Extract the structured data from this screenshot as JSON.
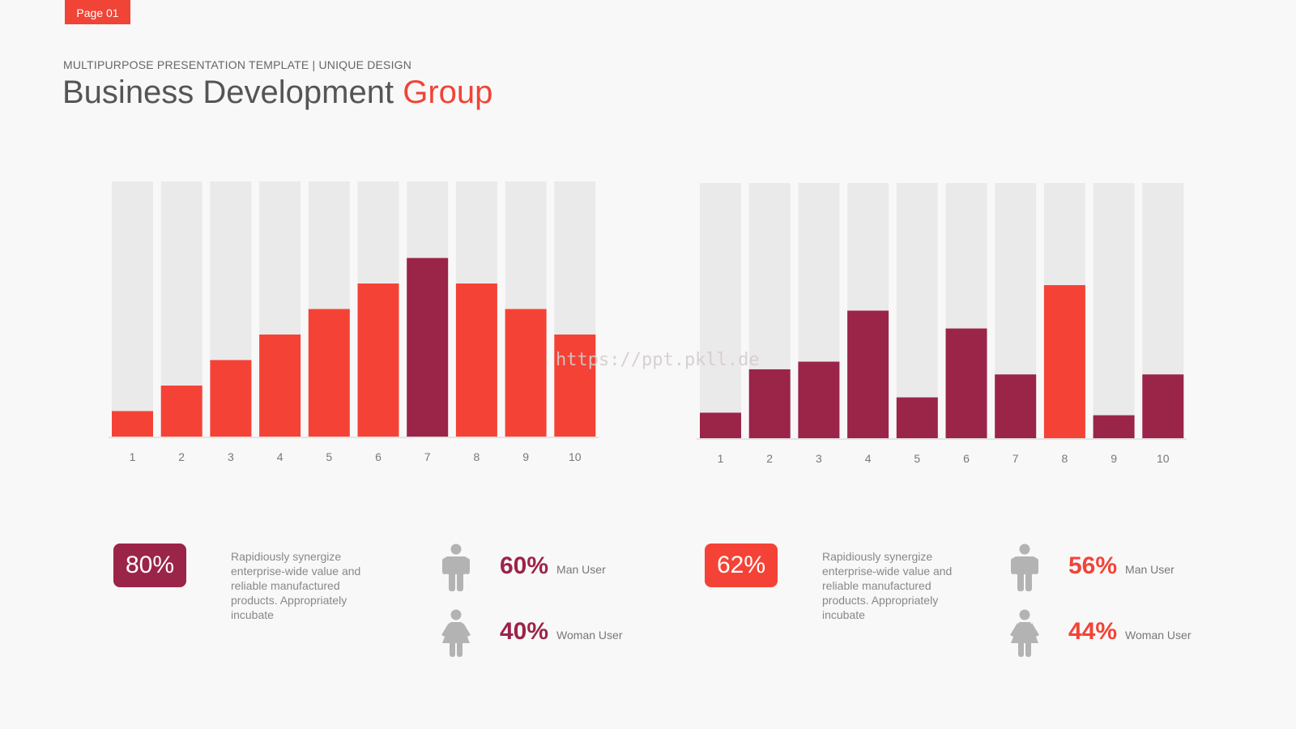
{
  "page_tag": "Page 01",
  "header": {
    "subtitle": "MULTIPURPOSE PRESENTATION TEMPLATE | UNIQUE DESIGN",
    "title_main": "Business Development",
    "title_accent": "Group"
  },
  "watermark": "https://ppt.pkll.de",
  "colors": {
    "red": "#f44336",
    "maroon": "#9b2449",
    "track": "#ebeaeb",
    "person": "#b3b3b3"
  },
  "chart_data": [
    {
      "type": "bar",
      "categories": [
        "1",
        "2",
        "3",
        "4",
        "5",
        "6",
        "7",
        "8",
        "9",
        "10"
      ],
      "values": [
        10,
        20,
        30,
        40,
        50,
        60,
        70,
        60,
        50,
        40
      ],
      "highlight_index": 6,
      "bar_color": "red",
      "highlight_color": "maroon",
      "ylim": [
        0,
        100
      ],
      "grid": false,
      "title": "",
      "xlabel": "",
      "ylabel": ""
    },
    {
      "type": "bar",
      "categories": [
        "1",
        "2",
        "3",
        "4",
        "5",
        "6",
        "7",
        "8",
        "9",
        "10"
      ],
      "values": [
        10,
        27,
        30,
        50,
        16,
        43,
        25,
        60,
        9,
        25
      ],
      "highlight_index": 7,
      "bar_color": "maroon",
      "highlight_color": "red",
      "ylim": [
        0,
        100
      ],
      "grid": false,
      "title": "",
      "xlabel": "",
      "ylabel": ""
    }
  ],
  "panels": [
    {
      "badge": "80%",
      "badge_color": "#9b2449",
      "description": "Rapidiously synergize enterprise-wide value and reliable manufactured products. Appropriately incubate",
      "value_color": "#9b2449",
      "man": {
        "value": "60%",
        "label": "Man User",
        "icon": "man-icon"
      },
      "woman": {
        "value": "40%",
        "label": "Woman User",
        "icon": "woman-icon"
      }
    },
    {
      "badge": "62%",
      "badge_color": "#f44336",
      "description": "Rapidiously synergize enterprise-wide value and reliable manufactured products. Appropriately incubate",
      "value_color": "#f44336",
      "man": {
        "value": "56%",
        "label": "Man User",
        "icon": "man-icon"
      },
      "woman": {
        "value": "44%",
        "label": "Woman User",
        "icon": "woman-icon"
      }
    }
  ]
}
